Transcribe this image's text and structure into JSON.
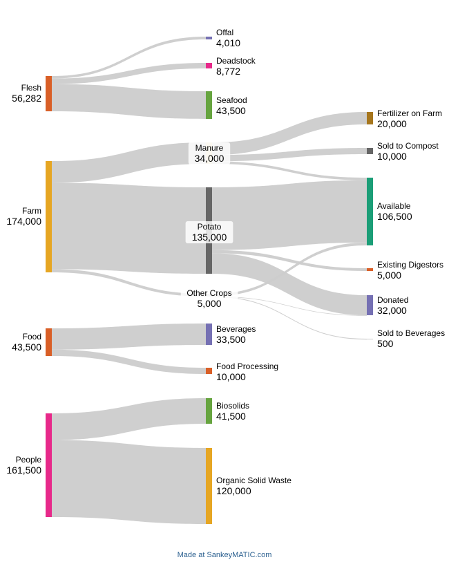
{
  "diagram": {
    "nodes": [
      {
        "id": "flesh",
        "name": "Flesh",
        "value": "56,282",
        "color": "#d95f27"
      },
      {
        "id": "farm",
        "name": "Farm",
        "value": "174,000",
        "color": "#e6a623"
      },
      {
        "id": "food",
        "name": "Food",
        "value": "43,500",
        "color": "#d95f27"
      },
      {
        "id": "people",
        "name": "People",
        "value": "161,500",
        "color": "#e7298a"
      },
      {
        "id": "offal",
        "name": "Offal",
        "value": "4,010",
        "color": "#7570b3"
      },
      {
        "id": "deadstock",
        "name": "Deadstock",
        "value": "8,772",
        "color": "#e7298a"
      },
      {
        "id": "seafood",
        "name": "Seafood",
        "value": "43,500",
        "color": "#66a43f"
      },
      {
        "id": "manure",
        "name": "Manure",
        "value": "34,000",
        "color": "#e6d7a9"
      },
      {
        "id": "potato",
        "name": "Potato",
        "value": "135,000",
        "color": "#666666"
      },
      {
        "id": "othercrops",
        "name": "Other Crops",
        "value": "5,000",
        "color": "#cccccc"
      },
      {
        "id": "beverages",
        "name": "Beverages",
        "value": "33,500",
        "color": "#7570b3"
      },
      {
        "id": "foodproc",
        "name": "Food Processing",
        "value": "10,000",
        "color": "#d95f27"
      },
      {
        "id": "biosolids",
        "name": "Biosolids",
        "value": "41,500",
        "color": "#66a43f"
      },
      {
        "id": "osw",
        "name": "Organic Solid Waste",
        "value": "120,000",
        "color": "#e6a623"
      },
      {
        "id": "fertilizer",
        "name": "Fertilizer on Farm",
        "value": "20,000",
        "color": "#a6761d"
      },
      {
        "id": "compost",
        "name": "Sold to Compost",
        "value": "10,000",
        "color": "#666666"
      },
      {
        "id": "available",
        "name": "Available",
        "value": "106,500",
        "color": "#1b9e77"
      },
      {
        "id": "digestors",
        "name": "Existing Digestors",
        "value": "5,000",
        "color": "#d95f27"
      },
      {
        "id": "donated",
        "name": "Donated",
        "value": "32,000",
        "color": "#7570b3"
      },
      {
        "id": "soldbev",
        "name": "Sold to Beverages",
        "value": "500",
        "color": "#cccccc"
      }
    ],
    "flows": [
      {
        "source": "flesh",
        "target": "offal",
        "amount": 4010
      },
      {
        "source": "flesh",
        "target": "deadstock",
        "amount": 8772
      },
      {
        "source": "flesh",
        "target": "seafood",
        "amount": 43500
      },
      {
        "source": "farm",
        "target": "manure",
        "amount": 34000
      },
      {
        "source": "farm",
        "target": "potato",
        "amount": 135000
      },
      {
        "source": "farm",
        "target": "othercrops",
        "amount": 5000
      },
      {
        "source": "food",
        "target": "beverages",
        "amount": 33500
      },
      {
        "source": "food",
        "target": "foodproc",
        "amount": 10000
      },
      {
        "source": "people",
        "target": "biosolids",
        "amount": 41500
      },
      {
        "source": "people",
        "target": "osw",
        "amount": 120000
      },
      {
        "source": "manure",
        "target": "fertilizer",
        "amount": 20000
      },
      {
        "source": "manure",
        "target": "compost",
        "amount": 10000
      },
      {
        "source": "manure",
        "target": "available",
        "amount": 4000
      },
      {
        "source": "potato",
        "target": "available",
        "amount": 98000
      },
      {
        "source": "potato",
        "target": "digestors",
        "amount": 5000
      },
      {
        "source": "potato",
        "target": "donated",
        "amount": 32000
      },
      {
        "source": "othercrops",
        "target": "available",
        "amount": 4500
      },
      {
        "source": "othercrops",
        "target": "donated",
        "amount": 0
      },
      {
        "source": "othercrops",
        "target": "soldbev",
        "amount": 500
      }
    ],
    "link_color": "#cccccc"
  },
  "footer": {
    "text": "Made at SankeyMATIC.com"
  }
}
